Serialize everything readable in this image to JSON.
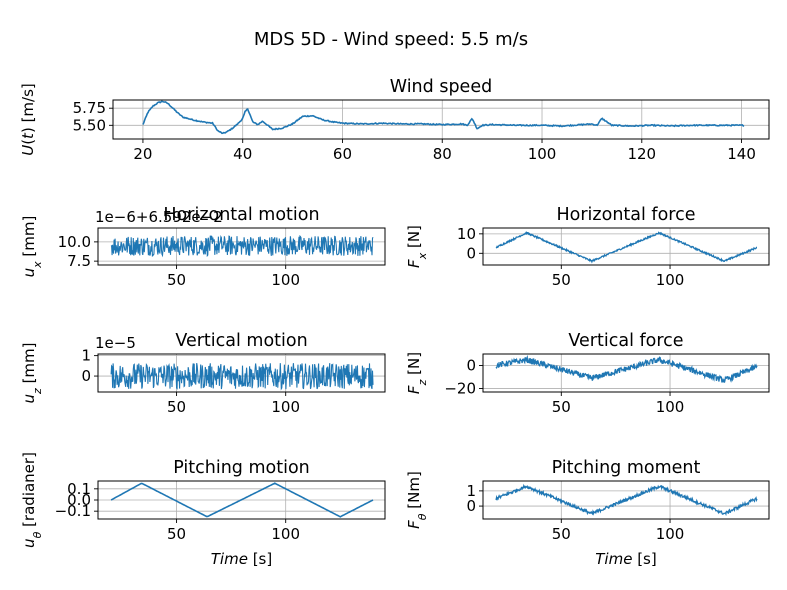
{
  "figure": {
    "suptitle": "MDS 5D - Wind speed: 5.5 m/s",
    "line_color": "#1f77b4"
  },
  "chart_data": [
    {
      "id": "wind",
      "type": "line",
      "title": "Wind speed",
      "ylabel": "U(t) [m/s]",
      "xlabel": "",
      "offset_text": "",
      "grid": true,
      "xlim": [
        14,
        145.5
      ],
      "ylim": [
        5.3,
        5.87
      ],
      "xticks": [
        20,
        40,
        60,
        80,
        100,
        120,
        140
      ],
      "xtick_labels": [
        "20",
        "40",
        "60",
        "80",
        "100",
        "120",
        "140"
      ],
      "yticks": [
        5.5,
        5.75
      ],
      "ytick_labels": [
        "5.50",
        "5.75"
      ],
      "series": [
        {
          "x": [
            20,
            21,
            22,
            23,
            24,
            25,
            26,
            27,
            28,
            30,
            32,
            34,
            35,
            36,
            37,
            38,
            39,
            40,
            40.5,
            41,
            41.5,
            42,
            43,
            44,
            45,
            46,
            48,
            50,
            52,
            54,
            56,
            58,
            60,
            64,
            68,
            72,
            76,
            80,
            84,
            85,
            86,
            87,
            88,
            90,
            95,
            100,
            104,
            108,
            110,
            111,
            112,
            114,
            118,
            122,
            126,
            130,
            134,
            138,
            140.5
          ],
          "y": [
            5.51,
            5.69,
            5.78,
            5.83,
            5.85,
            5.82,
            5.75,
            5.68,
            5.62,
            5.58,
            5.55,
            5.53,
            5.42,
            5.38,
            5.41,
            5.46,
            5.52,
            5.6,
            5.7,
            5.74,
            5.65,
            5.55,
            5.51,
            5.56,
            5.5,
            5.44,
            5.46,
            5.52,
            5.63,
            5.64,
            5.58,
            5.55,
            5.53,
            5.52,
            5.53,
            5.52,
            5.52,
            5.51,
            5.52,
            5.5,
            5.6,
            5.45,
            5.5,
            5.51,
            5.5,
            5.5,
            5.49,
            5.51,
            5.52,
            5.5,
            5.6,
            5.5,
            5.49,
            5.5,
            5.49,
            5.5,
            5.5,
            5.5,
            5.5
          ]
        }
      ]
    },
    {
      "id": "hmotion",
      "type": "line",
      "title": "Horizontal motion",
      "ylabel": "u_x [mm]",
      "xlabel": "",
      "offset_text": "1e−6+6.592e−2",
      "grid": true,
      "xlim": [
        14,
        145.5
      ],
      "ylim": [
        7.0,
        11.8
      ],
      "xticks": [
        50,
        100
      ],
      "xtick_labels": [
        "50",
        "100"
      ],
      "yticks": [
        7.5,
        10.0
      ],
      "ytick_labels": [
        "7.5",
        "10.0"
      ],
      "series": [
        {
          "x": [
            20,
            140
          ],
          "y_center": 9.5,
          "y_band": [
            8.0,
            11.1
          ]
        }
      ]
    },
    {
      "id": "hforce",
      "type": "line",
      "title": "Horizontal force",
      "ylabel": "F_x [N]",
      "xlabel": "",
      "offset_text": "",
      "grid": true,
      "xlim": [
        14,
        145.5
      ],
      "ylim": [
        -6,
        13
      ],
      "xticks": [
        50,
        100
      ],
      "xtick_labels": [
        "50",
        "100"
      ],
      "yticks": [
        0,
        10
      ],
      "ytick_labels": [
        "0",
        "10"
      ],
      "series": [
        {
          "x": [
            20,
            34,
            64,
            95,
            125,
            140
          ],
          "y": [
            3,
            10.5,
            -4,
            10.5,
            -4,
            3
          ],
          "band": 0.8
        }
      ]
    },
    {
      "id": "vmotion",
      "type": "line",
      "title": "Vertical motion",
      "ylabel": "u_z [mm]",
      "xlabel": "",
      "offset_text": "1e−5",
      "grid": true,
      "xlim": [
        14,
        145.5
      ],
      "ylim": [
        -0.78,
        1.08
      ],
      "xticks": [
        50,
        100
      ],
      "xtick_labels": [
        "50",
        "100"
      ],
      "yticks": [
        0,
        1
      ],
      "ytick_labels": [
        "0",
        "1"
      ],
      "series": [
        {
          "x": [
            20,
            140
          ],
          "y_center": 0,
          "y_band": [
            -0.6,
            0.9
          ]
        }
      ]
    },
    {
      "id": "vforce",
      "type": "line",
      "title": "Vertical force",
      "ylabel": "F_z [N]",
      "xlabel": "",
      "offset_text": "",
      "grid": true,
      "xlim": [
        14,
        145.5
      ],
      "ylim": [
        -23,
        10
      ],
      "xticks": [
        50,
        100
      ],
      "xtick_labels": [
        "50",
        "100"
      ],
      "yticks": [
        0,
        -20
      ],
      "ytick_labels": [
        "0",
        "−20"
      ],
      "series": [
        {
          "x": [
            20,
            34,
            64,
            95,
            125,
            140
          ],
          "y": [
            0,
            5,
            -11,
            5,
            -13,
            -1
          ],
          "band": 5
        }
      ]
    },
    {
      "id": "pmotion",
      "type": "line",
      "title": "Pitching motion",
      "ylabel": "u_θ [radianer]",
      "xlabel": "Time [s]",
      "offset_text": "",
      "grid": true,
      "xlim": [
        14,
        145.5
      ],
      "ylim": [
        -0.17,
        0.17
      ],
      "xticks": [
        50,
        100
      ],
      "xtick_labels": [
        "50",
        "100"
      ],
      "yticks": [
        0.1,
        0.0,
        -0.1
      ],
      "ytick_labels": [
        "0.1",
        "0.0",
        "−0.1"
      ],
      "series": [
        {
          "x": [
            20,
            34,
            64,
            95,
            125,
            140
          ],
          "y": [
            0,
            0.15,
            -0.15,
            0.15,
            -0.15,
            0
          ]
        }
      ]
    },
    {
      "id": "pmoment",
      "type": "line",
      "title": "Pitching moment",
      "ylabel": "F_θ [Nm]",
      "xlabel": "Time [s]",
      "offset_text": "",
      "grid": true,
      "xlim": [
        14,
        145.5
      ],
      "ylim": [
        -0.85,
        1.65
      ],
      "xticks": [
        50,
        100
      ],
      "xtick_labels": [
        "50",
        "100"
      ],
      "yticks": [
        1,
        0
      ],
      "ytick_labels": [
        "1",
        "0"
      ],
      "series": [
        {
          "x": [
            20,
            34,
            64,
            95,
            125,
            140
          ],
          "y": [
            0.5,
            1.3,
            -0.5,
            1.3,
            -0.5,
            0.5
          ],
          "band": 0.2
        }
      ]
    }
  ]
}
